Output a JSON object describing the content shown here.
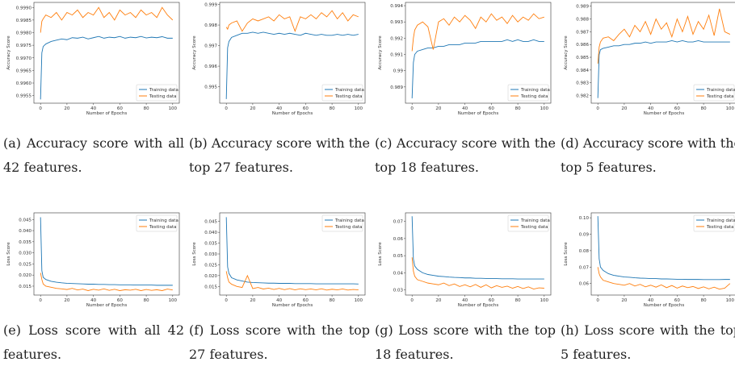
{
  "chart_data": [
    {
      "type": "line",
      "ylabel": "Accuracy Score",
      "xlabel": "Number of Epochs",
      "caption": "(a) Accuracy score with all 42 features.",
      "legend": "lower right",
      "x": [
        0,
        1,
        2,
        4,
        8,
        12,
        16,
        20,
        24,
        28,
        32,
        36,
        40,
        44,
        48,
        52,
        56,
        60,
        64,
        68,
        72,
        76,
        80,
        84,
        88,
        92,
        96,
        100
      ],
      "xlim": [
        -5,
        105
      ],
      "xticks": [
        0,
        20,
        40,
        60,
        80,
        100
      ],
      "ylim": [
        0.9952,
        0.9992
      ],
      "yticks": [
        0.9955,
        {
          "value": 0.996,
          "label": "0.9960"
        },
        0.9965,
        {
          "value": 0.997,
          "label": "0.9970"
        },
        0.9975,
        {
          "value": 0.998,
          "label": "0.9980"
        },
        0.9985,
        {
          "value": 0.999,
          "label": "0.9990"
        }
      ],
      "series": [
        {
          "name": "Training data",
          "color": "#1f77b4",
          "values": [
            0.99535,
            0.9972,
            0.99745,
            0.99755,
            0.99765,
            0.9977,
            0.99775,
            0.99772,
            0.9978,
            0.99778,
            0.99782,
            0.99775,
            0.9978,
            0.99785,
            0.99778,
            0.99782,
            0.9978,
            0.99785,
            0.99778,
            0.99782,
            0.9978,
            0.99785,
            0.99779,
            0.99782,
            0.9978,
            0.99784,
            0.99778,
            0.99778
          ]
        },
        {
          "name": "Testing data",
          "color": "#ff7f0e",
          "values": [
            0.998,
            0.99845,
            0.99855,
            0.9987,
            0.9986,
            0.9988,
            0.9985,
            0.9988,
            0.9987,
            0.9989,
            0.9986,
            0.9988,
            0.9987,
            0.999,
            0.9986,
            0.9988,
            0.9985,
            0.9989,
            0.9987,
            0.9988,
            0.9986,
            0.9989,
            0.9987,
            0.9988,
            0.9986,
            0.999,
            0.9987,
            0.9985
          ]
        }
      ]
    },
    {
      "type": "line",
      "ylabel": "Accuracy Score",
      "xlabel": "Number of Epochs",
      "caption": "(b) Accuracy score with the top 27 features.",
      "legend": "lower right",
      "x": [
        0,
        1,
        2,
        4,
        8,
        12,
        16,
        20,
        24,
        28,
        32,
        36,
        40,
        44,
        48,
        52,
        56,
        60,
        64,
        68,
        72,
        76,
        80,
        84,
        88,
        92,
        96,
        100
      ],
      "xlim": [
        -5,
        105
      ],
      "xticks": [
        0,
        20,
        40,
        60,
        80,
        100
      ],
      "ylim": [
        0.9942,
        0.9991
      ],
      "yticks": [
        0.995,
        0.996,
        0.997,
        0.998,
        0.999
      ],
      "series": [
        {
          "name": "Training data",
          "color": "#1f77b4",
          "values": [
            0.9944,
            0.9969,
            0.9972,
            0.9974,
            0.9975,
            0.9976,
            0.9976,
            0.99765,
            0.9976,
            0.99765,
            0.9976,
            0.99755,
            0.9976,
            0.99755,
            0.9976,
            0.99755,
            0.9975,
            0.9976,
            0.99755,
            0.9975,
            0.99755,
            0.9975,
            0.9975,
            0.99755,
            0.9975,
            0.99755,
            0.9975,
            0.99755
          ]
        },
        {
          "name": "Testing data",
          "color": "#ff7f0e",
          "values": [
            0.9979,
            0.9978,
            0.998,
            0.9981,
            0.9982,
            0.9977,
            0.9981,
            0.9983,
            0.9982,
            0.9983,
            0.9984,
            0.9982,
            0.9985,
            0.9983,
            0.9984,
            0.9977,
            0.9984,
            0.9983,
            0.9985,
            0.9983,
            0.9986,
            0.9984,
            0.9987,
            0.9983,
            0.9986,
            0.9982,
            0.9985,
            0.9984
          ]
        }
      ]
    },
    {
      "type": "line",
      "ylabel": "Accuracy Score",
      "xlabel": "Number of Epochs",
      "caption": "(c) Accuracy score with the top 18 features.",
      "legend": "lower right",
      "x": [
        0,
        1,
        2,
        4,
        8,
        12,
        16,
        20,
        24,
        28,
        32,
        36,
        40,
        44,
        48,
        52,
        56,
        60,
        64,
        68,
        72,
        76,
        80,
        84,
        88,
        92,
        96,
        100
      ],
      "xlim": [
        -5,
        105
      ],
      "xticks": [
        0,
        20,
        40,
        60,
        80,
        100
      ],
      "ylim": [
        0.988,
        0.9942
      ],
      "yticks": [
        0.989,
        0.99,
        0.991,
        0.992,
        0.993,
        0.994
      ],
      "series": [
        {
          "name": "Training data",
          "color": "#1f77b4",
          "values": [
            0.9883,
            0.9905,
            0.991,
            0.9912,
            0.9913,
            0.9914,
            0.9914,
            0.9915,
            0.9915,
            0.9916,
            0.9916,
            0.9916,
            0.9917,
            0.9917,
            0.9917,
            0.9918,
            0.9918,
            0.9918,
            0.9918,
            0.9918,
            0.9919,
            0.9918,
            0.9919,
            0.9918,
            0.9918,
            0.9919,
            0.9918,
            0.9918
          ]
        },
        {
          "name": "Testing data",
          "color": "#ff7f0e",
          "values": [
            0.9912,
            0.992,
            0.9925,
            0.9928,
            0.993,
            0.9927,
            0.9913,
            0.993,
            0.9932,
            0.9928,
            0.9933,
            0.993,
            0.9934,
            0.9931,
            0.9926,
            0.9933,
            0.993,
            0.9935,
            0.9931,
            0.9933,
            0.9929,
            0.9934,
            0.993,
            0.9933,
            0.9931,
            0.9935,
            0.9932,
            0.9933
          ]
        }
      ]
    },
    {
      "type": "line",
      "ylabel": "Accuracy Score",
      "xlabel": "Number of Epochs",
      "caption": "(d) Accuracy score with the top 5 features.",
      "legend": "lower right",
      "x": [
        0,
        1,
        2,
        4,
        8,
        12,
        16,
        20,
        24,
        28,
        32,
        36,
        40,
        44,
        48,
        52,
        56,
        60,
        64,
        68,
        72,
        76,
        80,
        84,
        88,
        92,
        96,
        100
      ],
      "xlim": [
        -5,
        105
      ],
      "xticks": [
        0,
        20,
        40,
        60,
        80,
        100
      ],
      "ylim": [
        0.9814,
        0.9893
      ],
      "yticks": [
        0.982,
        0.983,
        0.984,
        0.985,
        0.986,
        0.987,
        0.988,
        0.989
      ],
      "series": [
        {
          "name": "Training data",
          "color": "#1f77b4",
          "values": [
            0.9818,
            0.9852,
            0.9856,
            0.9857,
            0.9858,
            0.9859,
            0.9859,
            0.986,
            0.986,
            0.9861,
            0.9861,
            0.9862,
            0.9861,
            0.9862,
            0.9862,
            0.9862,
            0.9863,
            0.9862,
            0.9863,
            0.9862,
            0.9862,
            0.9863,
            0.9862,
            0.9862,
            0.9862,
            0.9862,
            0.9862,
            0.9862
          ]
        },
        {
          "name": "Testing data",
          "color": "#ff7f0e",
          "values": [
            0.9845,
            0.9858,
            0.9862,
            0.9865,
            0.9866,
            0.9863,
            0.9868,
            0.9872,
            0.9866,
            0.9875,
            0.987,
            0.9878,
            0.9868,
            0.988,
            0.9872,
            0.9877,
            0.9866,
            0.988,
            0.987,
            0.9882,
            0.9868,
            0.9878,
            0.9872,
            0.9883,
            0.9867,
            0.9888,
            0.987,
            0.9868
          ]
        }
      ]
    },
    {
      "type": "line",
      "ylabel": "Loss Score",
      "xlabel": "Number of Epochs",
      "caption": "(e) Loss score with all 42 features.",
      "legend": "upper right",
      "x": [
        0,
        1,
        2,
        4,
        8,
        12,
        16,
        20,
        24,
        28,
        32,
        36,
        40,
        44,
        48,
        52,
        56,
        60,
        64,
        68,
        72,
        76,
        80,
        84,
        88,
        92,
        96,
        100
      ],
      "xlim": [
        -5,
        105
      ],
      "xticks": [
        0,
        20,
        40,
        60,
        80,
        100
      ],
      "ylim": [
        0.011,
        0.048
      ],
      "yticks": [
        0.015,
        {
          "value": 0.02,
          "label": "0.020"
        },
        0.025,
        {
          "value": 0.03,
          "label": "0.030"
        },
        0.035,
        {
          "value": 0.04,
          "label": "0.040"
        },
        0.045
      ],
      "series": [
        {
          "name": "Training data",
          "color": "#1f77b4",
          "values": [
            0.046,
            0.022,
            0.019,
            0.018,
            0.0172,
            0.0168,
            0.0165,
            0.0163,
            0.0162,
            0.0161,
            0.016,
            0.0159,
            0.0159,
            0.0158,
            0.0158,
            0.0157,
            0.0157,
            0.0156,
            0.0156,
            0.0156,
            0.0155,
            0.0155,
            0.0155,
            0.0155,
            0.0154,
            0.0154,
            0.0154,
            0.0154
          ]
        },
        {
          "name": "Testing data",
          "color": "#ff7f0e",
          "values": [
            0.021,
            0.018,
            0.016,
            0.015,
            0.0145,
            0.014,
            0.0138,
            0.0135,
            0.014,
            0.0133,
            0.0137,
            0.013,
            0.0136,
            0.0132,
            0.0138,
            0.0131,
            0.0136,
            0.013,
            0.0134,
            0.0132,
            0.0136,
            0.013,
            0.0135,
            0.0131,
            0.0134,
            0.013,
            0.0137,
            0.0133
          ]
        }
      ]
    },
    {
      "type": "line",
      "ylabel": "Loss Score",
      "xlabel": "Number of Epochs",
      "caption": "(f) Loss score with the top 27 features.",
      "legend": "upper right",
      "x": [
        0,
        1,
        2,
        4,
        8,
        12,
        16,
        20,
        24,
        28,
        32,
        36,
        40,
        44,
        48,
        52,
        56,
        60,
        64,
        68,
        72,
        76,
        80,
        84,
        88,
        92,
        96,
        100
      ],
      "xlim": [
        -5,
        105
      ],
      "xticks": [
        0,
        20,
        40,
        60,
        80,
        100
      ],
      "ylim": [
        0.011,
        0.049
      ],
      "yticks": [
        0.015,
        {
          "value": 0.02,
          "label": "0.020"
        },
        0.025,
        {
          "value": 0.03,
          "label": "0.030"
        },
        0.035,
        {
          "value": 0.04,
          "label": "0.040"
        },
        0.045
      ],
      "series": [
        {
          "name": "Training data",
          "color": "#1f77b4",
          "values": [
            0.047,
            0.024,
            0.021,
            0.019,
            0.018,
            0.0175,
            0.017,
            0.0168,
            0.0167,
            0.0166,
            0.0165,
            0.0165,
            0.0164,
            0.0164,
            0.0164,
            0.0163,
            0.0163,
            0.0163,
            0.0163,
            0.0162,
            0.0162,
            0.0162,
            0.0162,
            0.0162,
            0.0162,
            0.0162,
            0.0162,
            0.0161
          ]
        },
        {
          "name": "Testing data",
          "color": "#ff7f0e",
          "values": [
            0.022,
            0.019,
            0.017,
            0.016,
            0.015,
            0.0145,
            0.02,
            0.014,
            0.0145,
            0.0138,
            0.0142,
            0.0136,
            0.0141,
            0.0135,
            0.014,
            0.0134,
            0.0139,
            0.0135,
            0.0138,
            0.0134,
            0.0139,
            0.0133,
            0.0137,
            0.0134,
            0.0138,
            0.0133,
            0.0136,
            0.0134
          ]
        }
      ]
    },
    {
      "type": "line",
      "ylabel": "Loss Score",
      "xlabel": "Number of Epochs",
      "caption": "(g) Loss score with the top 18 features.",
      "legend": "upper right",
      "x": [
        0,
        1,
        2,
        4,
        8,
        12,
        16,
        20,
        24,
        28,
        32,
        36,
        40,
        44,
        48,
        52,
        56,
        60,
        64,
        68,
        72,
        76,
        80,
        84,
        88,
        92,
        96,
        100
      ],
      "xlim": [
        -5,
        105
      ],
      "xticks": [
        0,
        20,
        40,
        60,
        80,
        100
      ],
      "ylim": [
        0.027,
        0.075
      ],
      "yticks": [
        0.03,
        0.04,
        0.05,
        0.06,
        0.07
      ],
      "series": [
        {
          "name": "Training data",
          "color": "#1f77b4",
          "values": [
            0.073,
            0.048,
            0.044,
            0.042,
            0.04,
            0.039,
            0.0385,
            0.038,
            0.0378,
            0.0375,
            0.0373,
            0.0372,
            0.037,
            0.037,
            0.0368,
            0.0368,
            0.0367,
            0.0366,
            0.0366,
            0.0365,
            0.0365,
            0.0365,
            0.0364,
            0.0364,
            0.0364,
            0.0364,
            0.0364,
            0.0364
          ]
        },
        {
          "name": "Testing data",
          "color": "#ff7f0e",
          "values": [
            0.049,
            0.041,
            0.038,
            0.036,
            0.035,
            0.034,
            0.0335,
            0.033,
            0.034,
            0.0325,
            0.0335,
            0.032,
            0.033,
            0.0318,
            0.0332,
            0.0315,
            0.033,
            0.0312,
            0.0325,
            0.0315,
            0.0322,
            0.031,
            0.032,
            0.0308,
            0.0318,
            0.0305,
            0.0312,
            0.031
          ]
        }
      ]
    },
    {
      "type": "line",
      "ylabel": "Loss Score",
      "xlabel": "Number of Epochs",
      "caption": "(h) Loss score with the top 5 features.",
      "legend": "upper right",
      "x": [
        0,
        1,
        2,
        4,
        8,
        12,
        16,
        20,
        24,
        28,
        32,
        36,
        40,
        44,
        48,
        52,
        56,
        60,
        64,
        68,
        72,
        76,
        80,
        84,
        88,
        92,
        96,
        100
      ],
      "xlim": [
        -5,
        105
      ],
      "xticks": [
        0,
        20,
        40,
        60,
        80,
        100
      ],
      "ylim": [
        0.053,
        0.103
      ],
      "yticks": [
        0.06,
        0.07,
        0.08,
        0.09,
        {
          "value": 0.1,
          "label": "0.10"
        }
      ],
      "series": [
        {
          "name": "Training data",
          "color": "#1f77b4",
          "values": [
            0.101,
            0.075,
            0.07,
            0.068,
            0.066,
            0.065,
            0.0645,
            0.064,
            0.0638,
            0.0635,
            0.0633,
            0.0632,
            0.063,
            0.063,
            0.0628,
            0.0628,
            0.0627,
            0.0626,
            0.0626,
            0.0625,
            0.0625,
            0.0625,
            0.0624,
            0.0624,
            0.0624,
            0.0624,
            0.0625,
            0.0625
          ]
        },
        {
          "name": "Testing data",
          "color": "#ff7f0e",
          "values": [
            0.07,
            0.066,
            0.064,
            0.062,
            0.061,
            0.06,
            0.0595,
            0.059,
            0.06,
            0.0585,
            0.0595,
            0.058,
            0.059,
            0.0578,
            0.0592,
            0.0575,
            0.0588,
            0.0572,
            0.0585,
            0.0575,
            0.0582,
            0.057,
            0.058,
            0.0568,
            0.0578,
            0.0566,
            0.0572,
            0.06
          ]
        }
      ]
    }
  ]
}
